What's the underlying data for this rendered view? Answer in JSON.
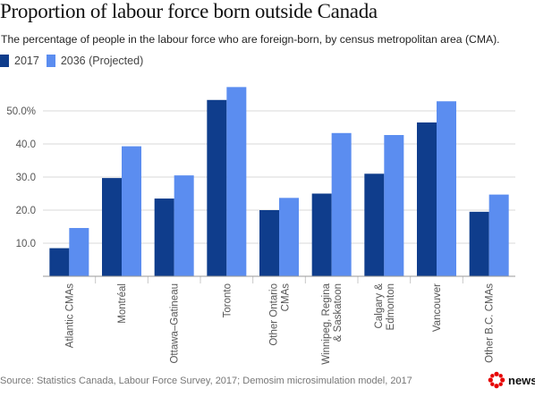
{
  "header": {
    "title": "Proportion of labour force born outside Canada",
    "subtitle": "The percentage of people in the labour force who are foreign-born, by census metropolitan area (CMA)."
  },
  "colors": {
    "series_2017": "#0f3d8c",
    "series_2036": "#5b8df0",
    "grid": "#d9d9d9",
    "logo_red": "#e60000"
  },
  "chart_data": {
    "type": "bar",
    "title": "Proportion of labour force born outside Canada",
    "subtitle": "The percentage of people in the labour force who are foreign-born, by census metropolitan area (CMA).",
    "categories": [
      "Atlantic CMAs",
      "Montréal",
      "Ottawa–Gatineau",
      "Toronto",
      "Other Ontario CMAs",
      "Winnipeg, Regina & Saskatoon",
      "Calgary & Edmonton",
      "Vancouver",
      "Other B.C. CMAs"
    ],
    "category_label_lines": [
      [
        "Atlantic CMAs"
      ],
      [
        "Montréal"
      ],
      [
        "Ottawa–Gatineau"
      ],
      [
        "Toronto"
      ],
      [
        "Other Ontario",
        "CMAs"
      ],
      [
        "Winnipeg, Regina",
        "& Saskatoon"
      ],
      [
        "Calgary &",
        "Edmonton"
      ],
      [
        "Vancouver"
      ],
      [
        "Other B.C. CMAs"
      ]
    ],
    "series": [
      {
        "name": "2017",
        "values": [
          8.5,
          29.7,
          23.5,
          53.3,
          20.0,
          25.0,
          31.0,
          46.5,
          19.5
        ]
      },
      {
        "name": "2036 (Projected)",
        "values": [
          14.6,
          39.3,
          30.5,
          57.2,
          23.7,
          43.3,
          42.7,
          52.9,
          24.7
        ]
      }
    ],
    "yticks": [
      {
        "value": 10,
        "label": "10.0"
      },
      {
        "value": 20,
        "label": "20.0"
      },
      {
        "value": 30,
        "label": "30.0"
      },
      {
        "value": 40,
        "label": "40.0"
      },
      {
        "value": 50,
        "label": "50.0%"
      }
    ],
    "ylim": [
      0,
      60
    ],
    "grid": true,
    "legend_position": "top-left"
  },
  "footer": {
    "source": "Source: Statistics Canada, Labour Force Survey, 2017; Demosim microsimulation model, 2017",
    "logo_text": "news"
  }
}
